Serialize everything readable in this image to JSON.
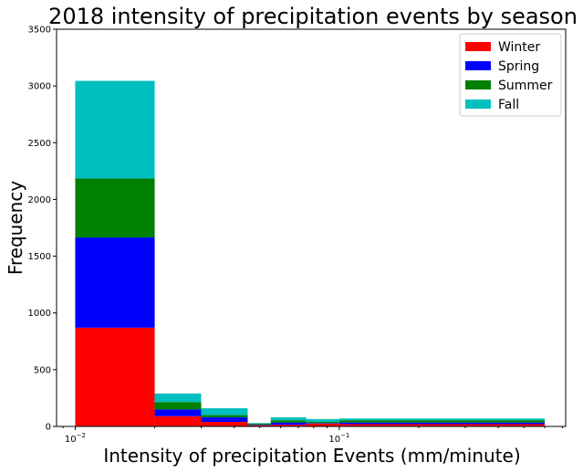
{
  "chart_data": {
    "type": "bar",
    "title": "2018 intensity of precipitation events by season",
    "xlabel": "Intensity of precipitation Events (mm/minute)",
    "ylabel": "Frequency",
    "x_scale": "log",
    "xlim": [
      0.0085,
      0.72
    ],
    "ylim": [
      0,
      3500
    ],
    "stacked": true,
    "grid": false,
    "legend_position": "top-right",
    "y_ticks": [
      0,
      500,
      1000,
      1500,
      2000,
      2500,
      3000,
      3500
    ],
    "x_ticks": [
      {
        "value": 0.01,
        "base": "10",
        "exp": "−2"
      },
      {
        "value": 0.1,
        "base": "10",
        "exp": "−1"
      }
    ],
    "bin_edges": [
      0.01,
      0.02,
      0.03,
      0.045,
      0.055,
      0.075,
      0.1,
      0.6
    ],
    "series": [
      {
        "name": "Winter",
        "color": "#ff0000",
        "values": [
          870,
          90,
          40,
          10,
          15,
          25,
          20
        ]
      },
      {
        "name": "Spring",
        "color": "#0000ff",
        "values": [
          795,
          60,
          40,
          5,
          20,
          5,
          15
        ]
      },
      {
        "name": "Summer",
        "color": "#008000",
        "values": [
          520,
          65,
          20,
          10,
          20,
          10,
          20
        ]
      },
      {
        "name": "Fall",
        "color": "#00bfbf",
        "values": [
          860,
          75,
          60,
          5,
          25,
          25,
          15
        ]
      }
    ]
  }
}
